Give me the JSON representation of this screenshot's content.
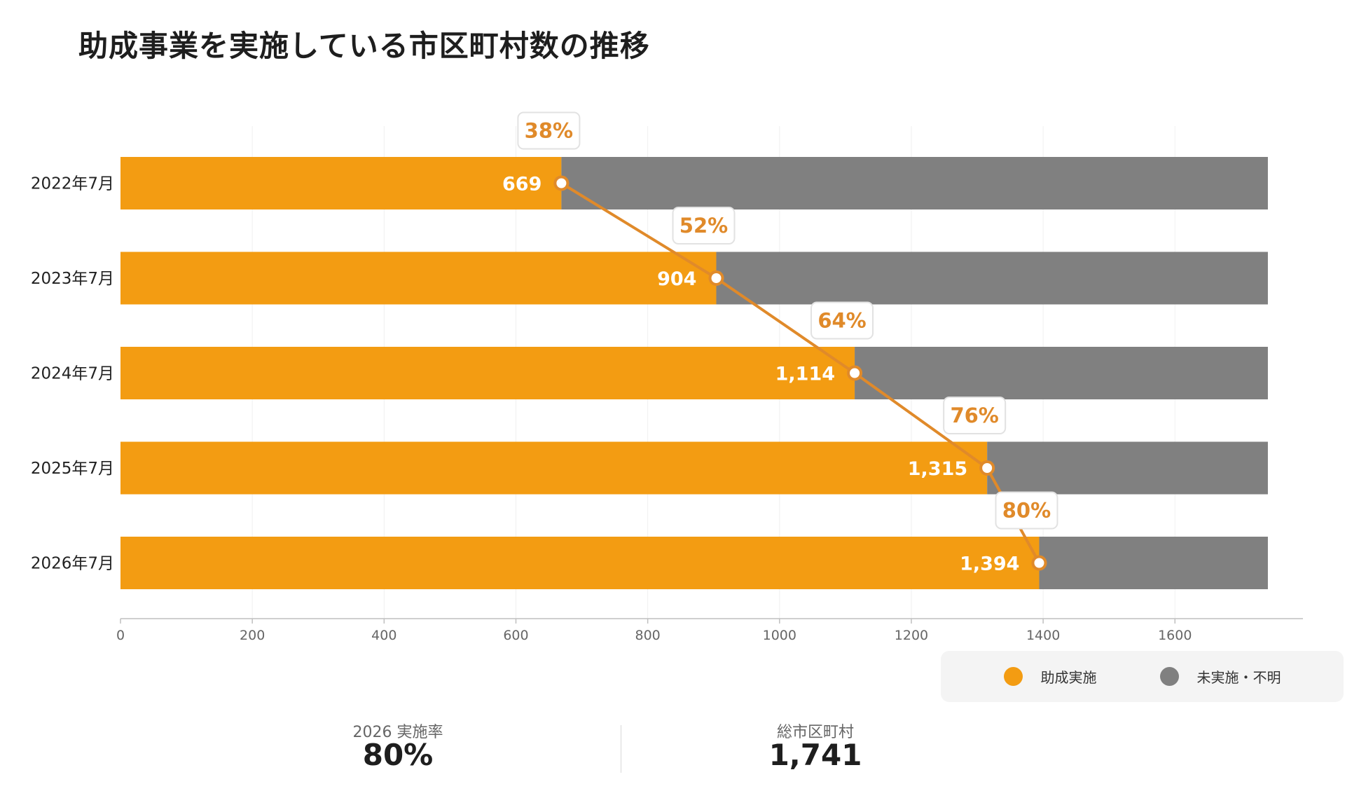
{
  "title": "助成事業を実施している市区町村数の推移",
  "chart_data": {
    "type": "bar",
    "orientation": "horizontal",
    "stacked": true,
    "categories": [
      "2022年7月",
      "2023年7月",
      "2024年7月",
      "2025年7月",
      "2026年7月"
    ],
    "series": [
      {
        "name": "助成実施",
        "values": [
          669,
          904,
          1114,
          1315,
          1394
        ],
        "color": "#f39c12"
      },
      {
        "name": "未実施・不明",
        "values": [
          1072,
          837,
          627,
          426,
          347
        ],
        "color": "#808080"
      }
    ],
    "data_labels": [
      "669",
      "904",
      "1,114",
      "1,315",
      "1,394"
    ],
    "rate_labels": [
      "38%",
      "52%",
      "64%",
      "76%",
      "80%"
    ],
    "line_color": "#e08a2a",
    "xlim": [
      0,
      1800
    ],
    "xticks": [
      0,
      200,
      400,
      600,
      800,
      1000,
      1200,
      1400,
      1600
    ],
    "grid": true,
    "legend_position": "bottom-right"
  },
  "stats": [
    {
      "label": "2026 実施率",
      "value": "80%"
    },
    {
      "label": "総市区町村",
      "value": "1,741"
    }
  ]
}
